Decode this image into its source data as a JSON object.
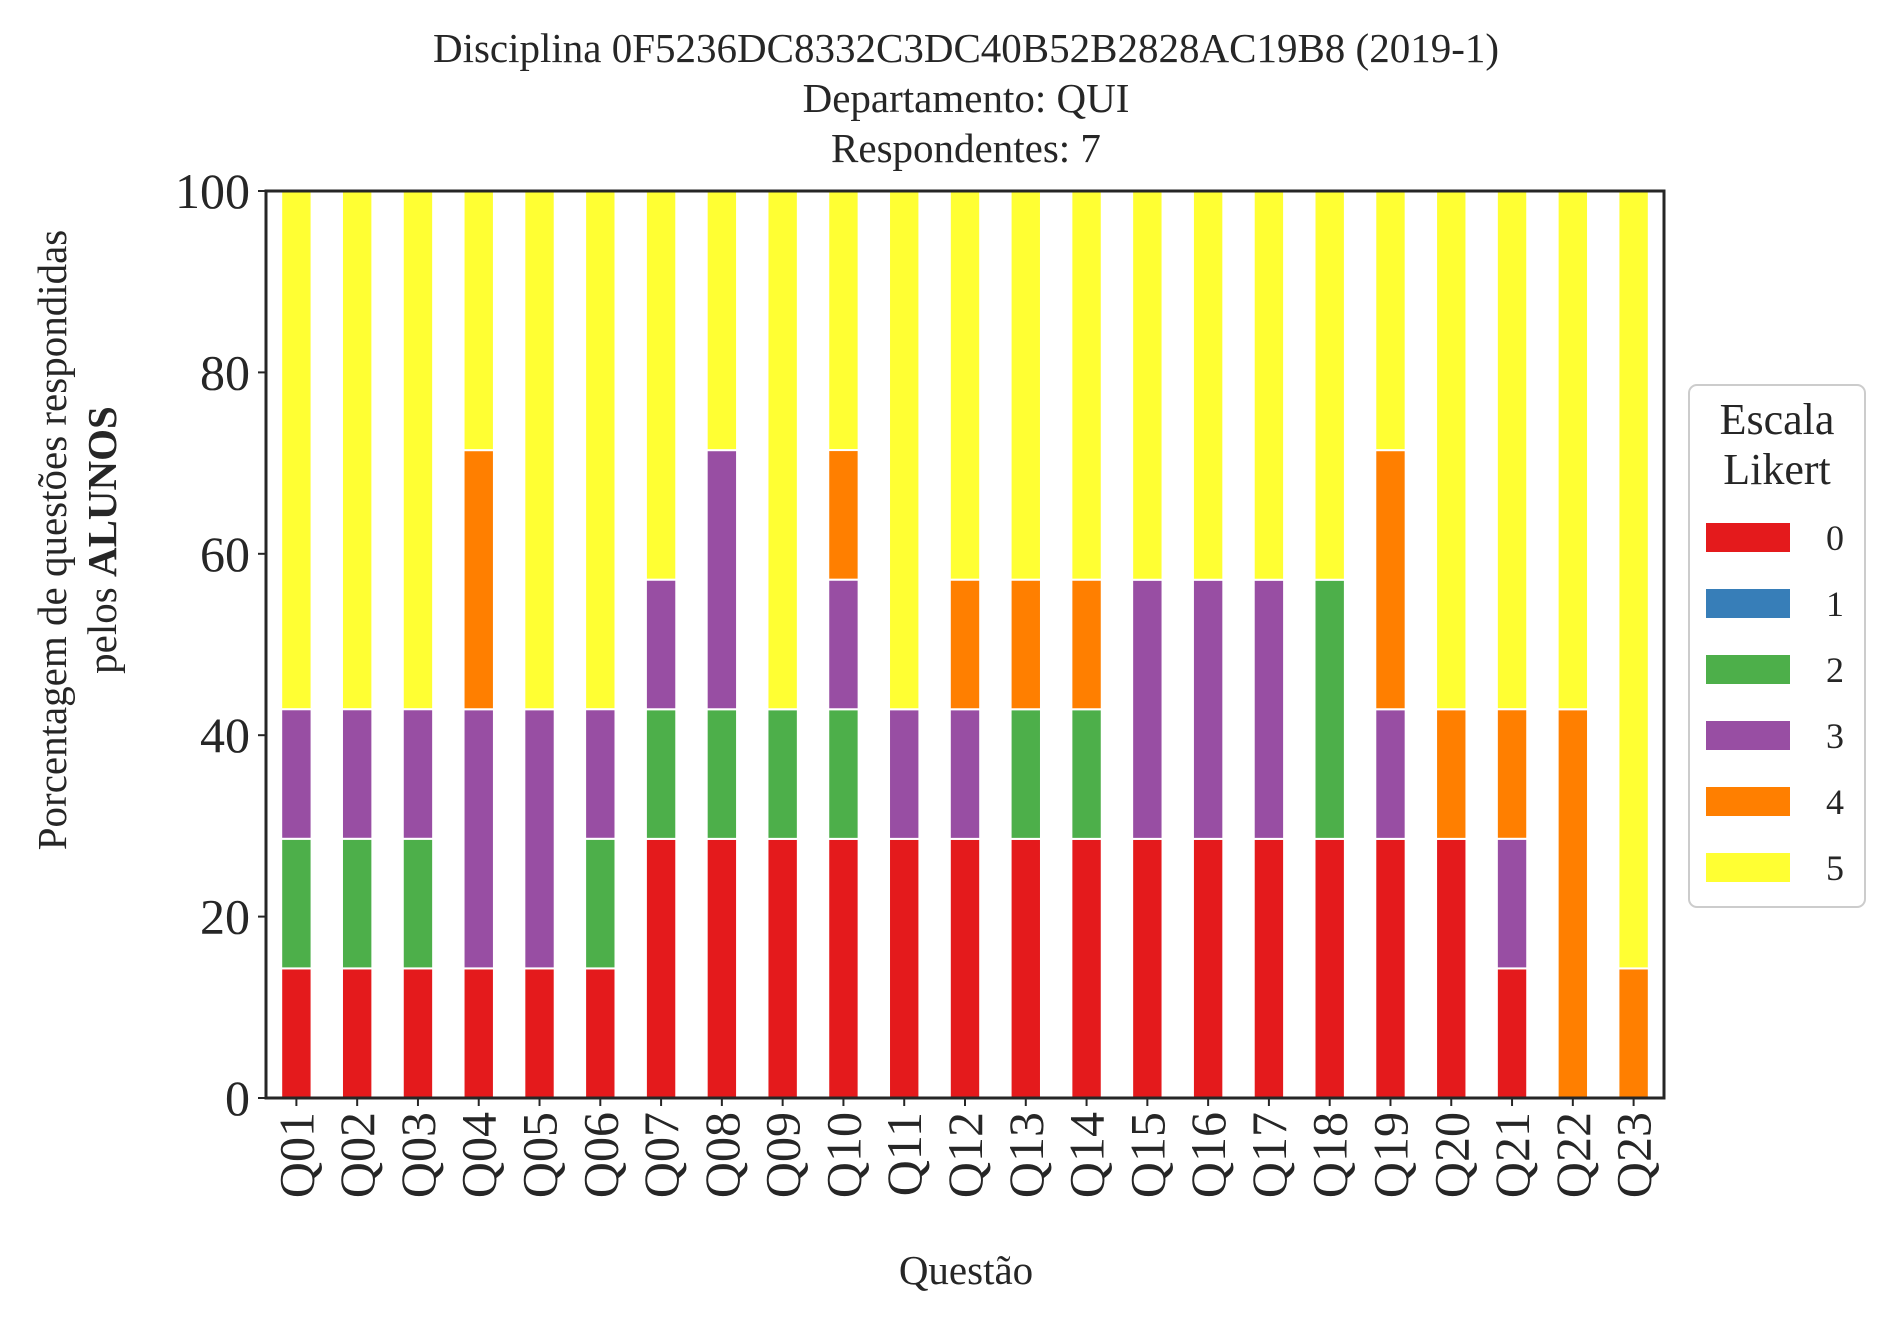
{
  "chart_data": {
    "type": "bar",
    "stacked": true,
    "title_lines": [
      "Disciplina 0F5236DC8332C3DC40B52B2828AC19B8 (2019-1)",
      "Departamento: QUI",
      "Respondentes: 7"
    ],
    "xlabel": "Questão",
    "ylabel_line1": "Porcentagem de questões respondidas",
    "ylabel_line2_prefix": "pelos ",
    "ylabel_line2_bold": "ALUNOS",
    "ylim": [
      0,
      100
    ],
    "yticks": [
      "0",
      "20",
      "40",
      "60",
      "80",
      "100"
    ],
    "categories": [
      "Q01",
      "Q02",
      "Q03",
      "Q04",
      "Q05",
      "Q06",
      "Q07",
      "Q08",
      "Q09",
      "Q10",
      "Q11",
      "Q12",
      "Q13",
      "Q14",
      "Q15",
      "Q16",
      "Q17",
      "Q18",
      "Q19",
      "Q20",
      "Q21",
      "Q22",
      "Q23"
    ],
    "legend": {
      "title_lines": [
        "Escala",
        "Likert"
      ],
      "placement": "right"
    },
    "series": [
      {
        "name": "0",
        "color": "#e41a1c",
        "values": [
          14.29,
          14.29,
          14.29,
          14.29,
          14.29,
          14.29,
          28.57,
          28.57,
          28.57,
          28.57,
          28.57,
          28.57,
          28.57,
          28.57,
          28.57,
          28.57,
          28.57,
          28.57,
          28.57,
          28.57,
          14.29,
          0,
          0
        ]
      },
      {
        "name": "1",
        "color": "#377eb8",
        "values": [
          0,
          0,
          0,
          0,
          0,
          0,
          0,
          0,
          0,
          0,
          0,
          0,
          0,
          0,
          0,
          0,
          0,
          0,
          0,
          0,
          0,
          0,
          0
        ]
      },
      {
        "name": "2",
        "color": "#4daf4a",
        "values": [
          14.29,
          14.29,
          14.29,
          0,
          0,
          14.29,
          14.29,
          14.29,
          14.29,
          14.29,
          0,
          0,
          14.29,
          14.29,
          0,
          0,
          0,
          28.57,
          0,
          0,
          0,
          0,
          0
        ]
      },
      {
        "name": "3",
        "color": "#984ea3",
        "values": [
          14.29,
          14.29,
          14.29,
          28.57,
          28.57,
          14.29,
          14.29,
          28.57,
          0,
          14.29,
          14.29,
          14.29,
          0,
          0,
          28.57,
          28.57,
          28.57,
          0,
          14.29,
          0,
          14.29,
          0,
          0
        ]
      },
      {
        "name": "4",
        "color": "#ff7f00",
        "values": [
          0,
          0,
          0,
          28.57,
          0,
          0,
          0,
          0,
          0,
          14.29,
          0,
          14.29,
          14.29,
          14.29,
          0,
          0,
          0,
          0,
          28.57,
          14.29,
          14.29,
          42.86,
          14.29
        ]
      },
      {
        "name": "5",
        "color": "#ffff33",
        "values": [
          57.14,
          57.14,
          57.14,
          28.57,
          57.14,
          57.14,
          42.86,
          28.57,
          57.14,
          28.57,
          57.14,
          42.86,
          42.86,
          42.86,
          42.86,
          42.86,
          42.86,
          42.86,
          28.57,
          57.14,
          57.14,
          57.14,
          85.71
        ]
      }
    ]
  }
}
